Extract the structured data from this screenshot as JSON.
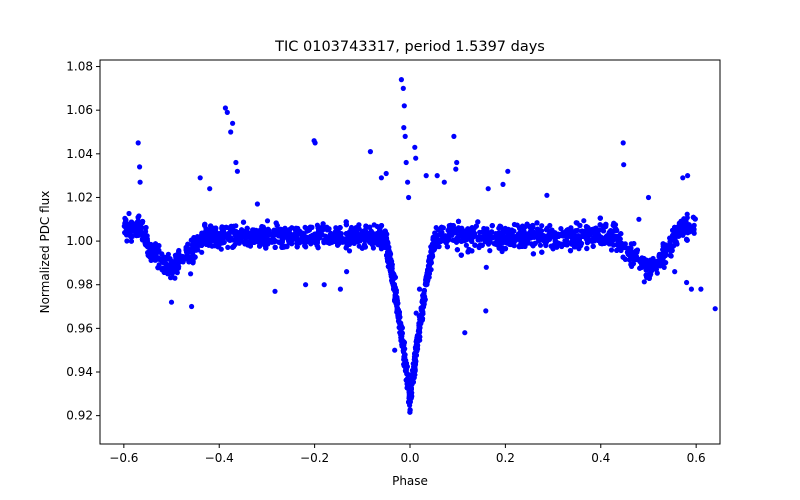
{
  "chart_data": {
    "type": "scatter",
    "title": "TIC 0103743317, period 1.5397 days",
    "xlabel": "Phase",
    "ylabel": "Normalized PDC flux",
    "xlim": [
      -0.65,
      0.65
    ],
    "ylim": [
      0.907,
      1.083
    ],
    "xticks": [
      -0.6,
      -0.4,
      -0.2,
      0.0,
      0.2,
      0.4,
      0.6
    ],
    "xtick_labels": [
      "−0.6",
      "−0.4",
      "−0.2",
      "0.0",
      "0.2",
      "0.4",
      "0.6"
    ],
    "yticks": [
      0.92,
      0.94,
      0.96,
      0.98,
      1.0,
      1.02,
      1.04,
      1.06,
      1.08
    ],
    "ytick_labels": [
      "0.92",
      "0.94",
      "0.96",
      "0.98",
      "1.00",
      "1.02",
      "1.04",
      "1.06",
      "1.08"
    ],
    "grid": false,
    "marker_color": "#0000ff",
    "series": [
      {
        "x_range": [
          -0.6,
          0.6
        ],
        "primary_eclipse": {
          "center": 0.0,
          "depth": 0.065,
          "min_flux": 0.915
        },
        "secondary_eclipse": {
          "centers": [
            -0.5,
            0.5
          ],
          "depth": 0.015
        },
        "baseline": 1.002,
        "outliers": [
          [
            -0.387,
            1.061
          ],
          [
            -0.383,
            1.059
          ],
          [
            -0.372,
            1.054
          ],
          [
            -0.376,
            1.05
          ],
          [
            -0.365,
            1.036
          ],
          [
            -0.362,
            1.032
          ],
          [
            -0.32,
            1.017
          ],
          [
            -0.201,
            1.046
          ],
          [
            -0.199,
            1.045
          ],
          [
            -0.57,
            1.045
          ],
          [
            -0.567,
            1.034
          ],
          [
            -0.566,
            1.027
          ],
          [
            -0.083,
            1.041
          ],
          [
            -0.018,
            1.074
          ],
          [
            -0.014,
            1.07
          ],
          [
            -0.012,
            1.062
          ],
          [
            -0.013,
            1.052
          ],
          [
            -0.01,
            1.048
          ],
          [
            -0.008,
            1.036
          ],
          [
            -0.005,
            1.027
          ],
          [
            -0.003,
            1.02
          ],
          [
            0.01,
            1.043
          ],
          [
            0.012,
            1.038
          ],
          [
            0.092,
            1.048
          ],
          [
            0.098,
            1.036
          ],
          [
            0.096,
            1.033
          ],
          [
            0.447,
            1.045
          ],
          [
            0.448,
            1.035
          ],
          [
            0.572,
            1.029
          ],
          [
            0.582,
            1.03
          ],
          [
            0.164,
            1.024
          ],
          [
            0.195,
            1.026
          ],
          [
            0.287,
            1.021
          ],
          [
            0.115,
            0.958
          ],
          [
            0.159,
            0.968
          ],
          [
            0.16,
            0.988
          ],
          [
            0.58,
            0.981
          ],
          [
            0.59,
            0.978
          ],
          [
            0.61,
            0.978
          ],
          [
            0.555,
            0.986
          ],
          [
            -0.5,
            0.972
          ],
          [
            -0.458,
            0.97
          ],
          [
            -0.46,
            0.985
          ],
          [
            -0.283,
            0.977
          ],
          [
            -0.219,
            0.98
          ],
          [
            -0.18,
            0.98
          ],
          [
            -0.146,
            0.978
          ],
          [
            -0.133,
            0.986
          ],
          [
            -0.039,
            0.985
          ],
          [
            -0.032,
            0.95
          ],
          [
            0.013,
            0.967
          ],
          [
            0.02,
            0.978
          ],
          [
            -0.05,
            1.031
          ],
          [
            -0.06,
            1.029
          ],
          [
            0.057,
            1.03
          ],
          [
            0.072,
            1.027
          ],
          [
            -0.44,
            1.029
          ],
          [
            -0.42,
            1.024
          ],
          [
            0.205,
            1.032
          ],
          [
            0.034,
            1.03
          ],
          [
            0.5,
            1.02
          ],
          [
            0.48,
            1.01
          ],
          [
            0.53,
            0.99
          ],
          [
            0.64,
            0.969
          ]
        ]
      }
    ]
  }
}
